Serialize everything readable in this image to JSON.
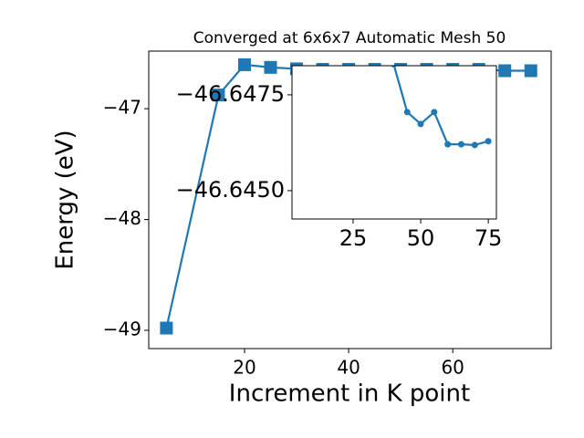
{
  "chart_data": [
    {
      "type": "line",
      "title": "Converged at 6x6x7 Automatic Mesh 50",
      "xlabel": "Increment in K point",
      "ylabel": "Energy (eV)",
      "marker": "square",
      "color": "#1f77b4",
      "x": [
        5,
        15,
        20,
        25,
        30,
        35,
        40,
        45,
        50,
        55,
        60,
        65,
        70,
        75
      ],
      "series": [
        {
          "color": "#1f77b4",
          "values": [
            -48.98,
            -46.876,
            -46.603,
            -46.627,
            -46.64,
            -46.645,
            -46.645,
            -46.645,
            -46.645,
            -46.645,
            -46.645,
            -46.645,
            -46.657,
            -46.657
          ]
        }
      ],
      "xlim": [
        1.6,
        78.9
      ],
      "ylim": [
        -49.165,
        -46.48
      ],
      "xticks": [
        20,
        40,
        60
      ],
      "yticks": [
        {
          "value": -47,
          "label": "−47"
        },
        {
          "value": -48,
          "label": "−48"
        },
        {
          "value": -49,
          "label": "−49"
        }
      ]
    },
    {
      "type": "line",
      "marker": "circle",
      "color": "#1f77b4",
      "x": [
        40,
        45,
        50,
        55,
        60,
        65,
        70,
        75
      ],
      "series": [
        {
          "color": "#1f77b4",
          "values": [
            -46.6483,
            -46.64705,
            -46.64674,
            -46.64705,
            -46.64621,
            -46.64621,
            -46.64619,
            -46.64629
          ]
        }
      ],
      "xlim": [
        2.4,
        78
      ],
      "ylim": [
        -46.64426,
        -46.64826
      ],
      "xticks": [
        25,
        50,
        75
      ],
      "yticks": [
        {
          "value": -46.6475,
          "label": "−46.6475"
        },
        {
          "value": -46.645,
          "label": "−46.6450"
        }
      ]
    }
  ]
}
